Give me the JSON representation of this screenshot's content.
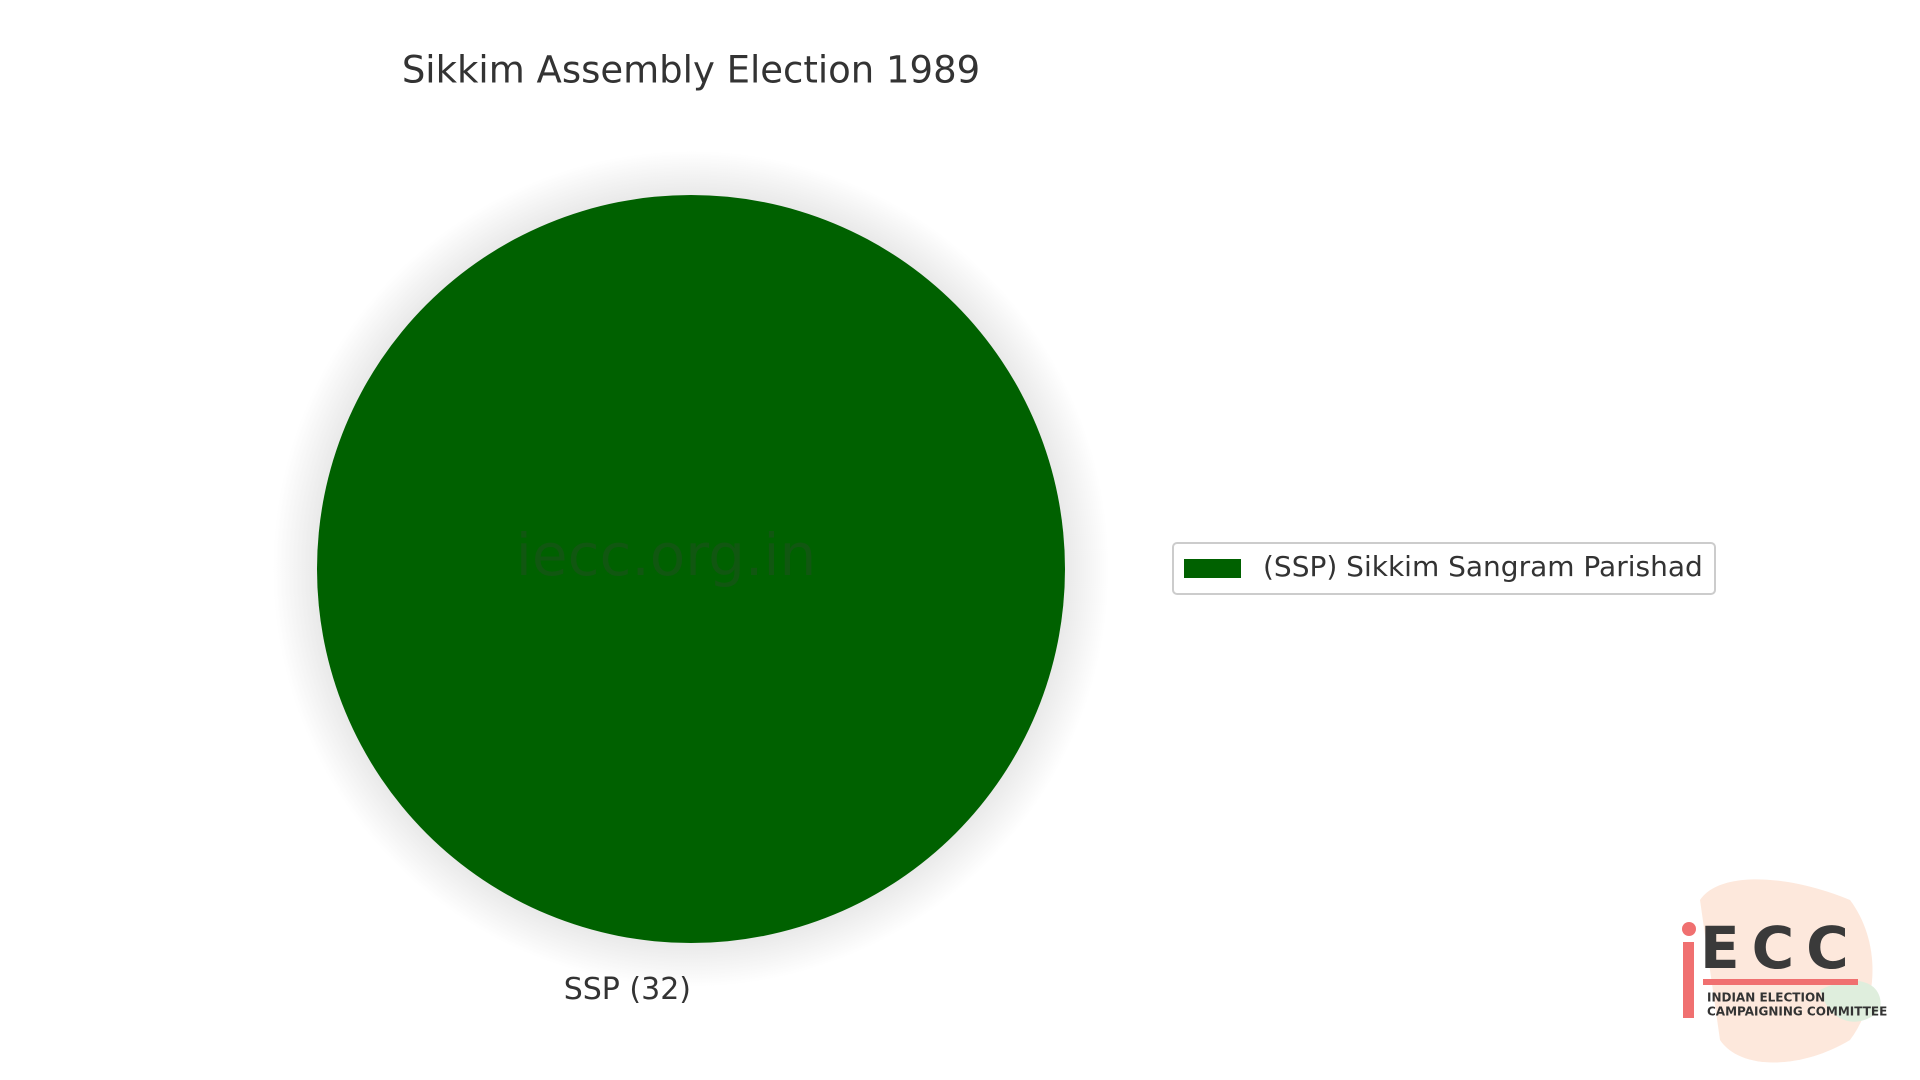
{
  "chart_data": {
    "type": "pie",
    "title": "Sikkim Assembly Election 1989",
    "categories": [
      "(SSP) Sikkim Sangram Parishad"
    ],
    "values": [
      32
    ],
    "value_labels": [
      "SSP (32)"
    ],
    "colors": [
      "#006100"
    ],
    "legend": "right",
    "watermark": "iecc.org.in"
  },
  "logo": {
    "mark": "ECC",
    "line1": "INDIAN ELECTION",
    "line2": "CAMPAIGNING COMMITTEE"
  }
}
